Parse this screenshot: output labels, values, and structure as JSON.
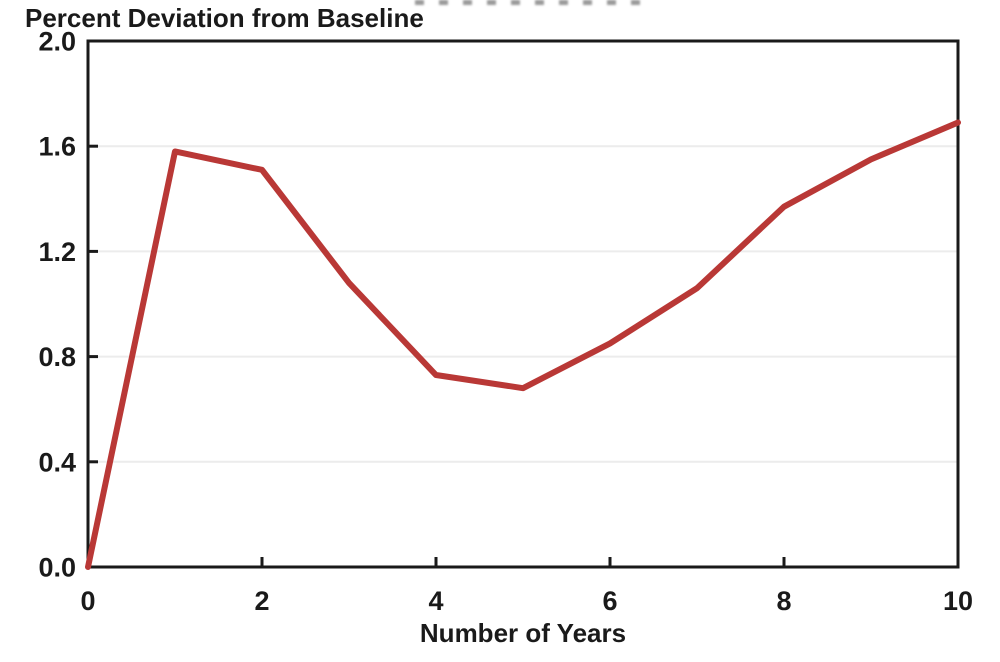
{
  "page": {
    "background": "#ffffff",
    "text_color": "#1a1a1a"
  },
  "chart_data": {
    "type": "line",
    "title": "Percent Deviation from Baseline",
    "xlabel": "Number of Years",
    "ylabel": "",
    "x": [
      0,
      1,
      2,
      3,
      4,
      5,
      6,
      7,
      8,
      9,
      10
    ],
    "series": [
      {
        "name": "percent-deviation-from-baseline",
        "color": "#b93836",
        "values": [
          0.0,
          1.58,
          1.51,
          1.08,
          0.73,
          0.68,
          0.85,
          1.06,
          1.37,
          1.55,
          1.69
        ]
      }
    ],
    "xlim": [
      0,
      10
    ],
    "ylim": [
      0.0,
      2.0
    ],
    "xticks": [
      0,
      2,
      4,
      6,
      8,
      10
    ],
    "xtick_labels": [
      "0",
      "2",
      "4",
      "6",
      "8",
      "10"
    ],
    "yticks": [
      0.0,
      0.4,
      0.8,
      1.2,
      1.6,
      2.0
    ],
    "ytick_labels": [
      "0.0",
      "0.4",
      "0.8",
      "1.2",
      "1.6",
      "2.0"
    ],
    "grid": "horizontal-only",
    "gridline_color": "#ececec",
    "frame_color": "#1a1a1a",
    "legend": "none"
  }
}
